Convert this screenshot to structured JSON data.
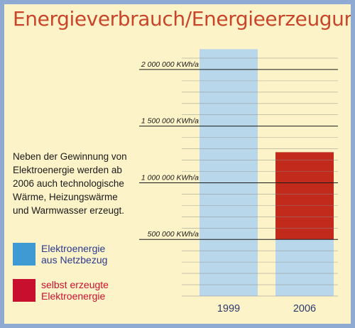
{
  "title": "Energieverbrauch/Energieerzeugung",
  "description": "Neben der Gewinnung von Elektroenergie werden ab 2006 auch technologische Wärme, Heizungswärme und Warmwasser erzeugt.",
  "legend": [
    {
      "label_line1": "Elektroenergie",
      "label_line2": "aus Netzbezug",
      "color": "#3f9ad4",
      "text_color": "#2a3a8e"
    },
    {
      "label_line1": "selbst erzeugte",
      "label_line2": "Elektroenergie",
      "color": "#c8102e",
      "text_color": "#c8102e"
    }
  ],
  "colors": {
    "background": "#fdf3c8",
    "border": "#8eaad2",
    "title": "#c8452b",
    "bar_grid": "#b9d7ea",
    "red_grid": "#c22a1c"
  },
  "chart_data": {
    "type": "bar",
    "stacked": true,
    "categories": [
      "1999",
      "2006"
    ],
    "series": [
      {
        "name": "Elektroenergie aus Netzbezug",
        "values": [
          2180000,
          500000
        ],
        "color": "#b9d7ea"
      },
      {
        "name": "selbst erzeugte Elektroenergie",
        "values": [
          0,
          770000
        ],
        "color": "#c22a1c"
      }
    ],
    "yticks": [
      {
        "value": 500000,
        "label": "500 000 KWh/a"
      },
      {
        "value": 1000000,
        "label": "1 000 000 KWh/a"
      },
      {
        "value": 1500000,
        "label": "1 500 000 KWh/a"
      },
      {
        "value": 2000000,
        "label": "2 000 000 KWh/a"
      }
    ],
    "ylim": [
      0,
      2200000
    ],
    "grid": true
  }
}
